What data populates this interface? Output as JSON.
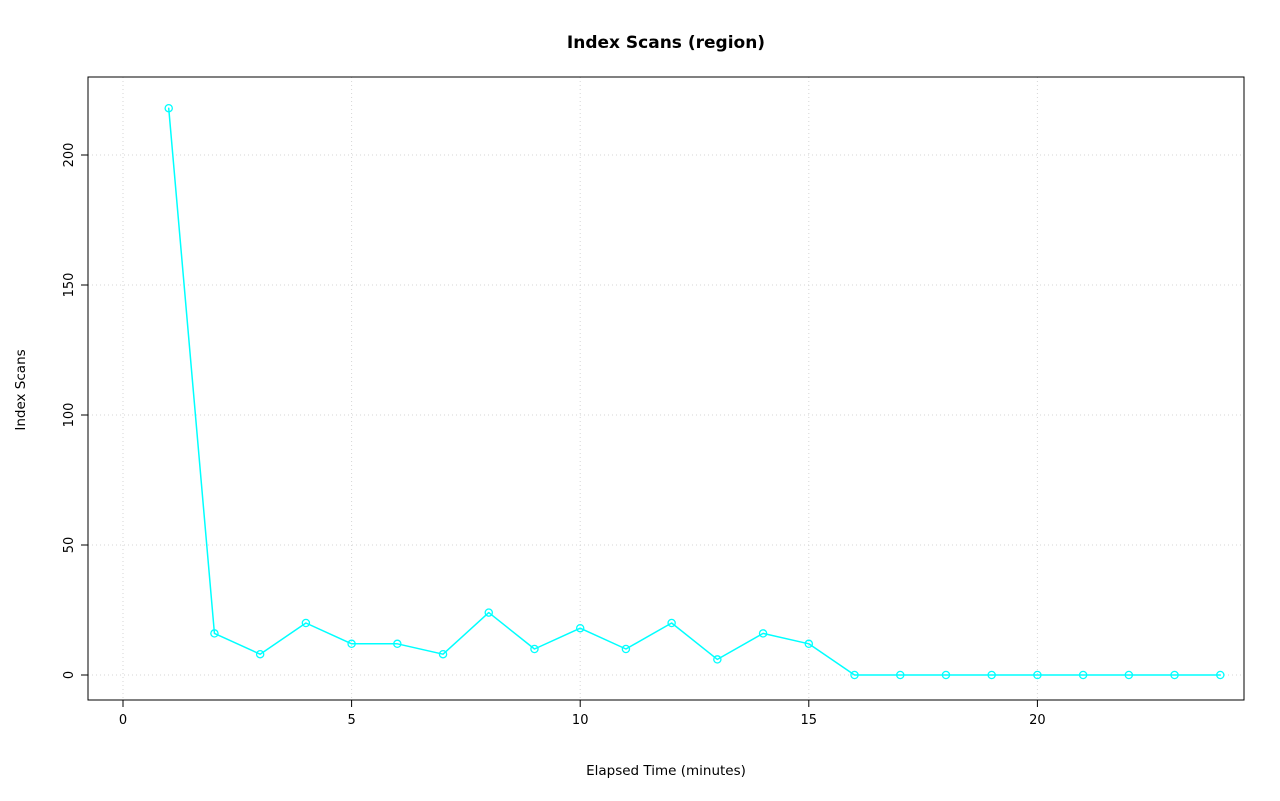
{
  "chart_data": {
    "type": "line",
    "title": "Index Scans (region)",
    "xlabel": "Elapsed Time (minutes)",
    "ylabel": "Index Scans",
    "x": [
      1,
      2,
      3,
      4,
      5,
      6,
      7,
      8,
      9,
      10,
      11,
      12,
      13,
      14,
      15,
      16,
      17,
      18,
      19,
      20,
      21,
      22,
      23,
      24
    ],
    "y": [
      218,
      16,
      8,
      20,
      12,
      12,
      8,
      24,
      10,
      18,
      10,
      20,
      6,
      16,
      12,
      0,
      0,
      0,
      0,
      0,
      0,
      0,
      0,
      0
    ],
    "x_ticks": [
      0,
      5,
      10,
      15,
      20
    ],
    "y_ticks": [
      0,
      50,
      100,
      150,
      200
    ],
    "xlim": [
      0,
      24
    ],
    "ylim": [
      0,
      220
    ],
    "grid": "on",
    "legend": "none",
    "series_name": "region",
    "line_color": "#00ffff",
    "point_style": "open-circle",
    "grid_color": "#d6d6d6",
    "box_color": "#000000"
  }
}
